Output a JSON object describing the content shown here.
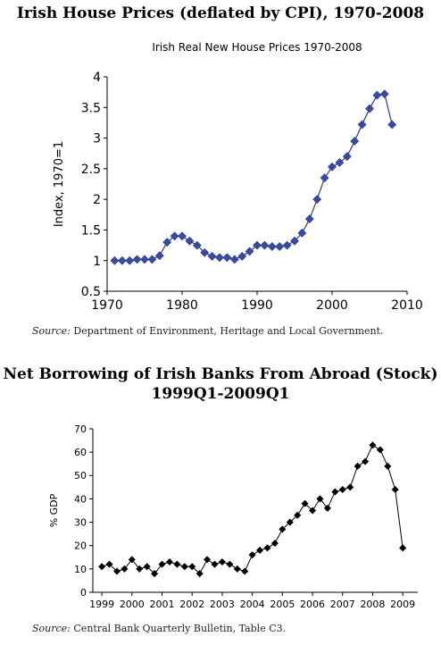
{
  "page": {
    "heading1": "Irish House Prices (deflated by CPI), 1970-2008",
    "source1_label": "Source:",
    "source1_text": " Department of Environment, Heritage and Local Government.",
    "heading2_line1": "Net Borrowing of Irish Banks From Abroad (Stock)",
    "heading2_line2": "1999Q1-2009Q1",
    "source2_label": "Source:",
    "source2_text": " Central Bank Quarterly Bulletin, Table C3."
  },
  "chart_data": [
    {
      "type": "line",
      "title": "Irish Real New House Prices 1970-2008",
      "xlabel": "",
      "ylabel": "Index, 1970=1",
      "xlim": [
        1970,
        2010
      ],
      "ylim": [
        0.5,
        4
      ],
      "xticks": [
        1970,
        1980,
        1990,
        2000,
        2010
      ],
      "yticks": [
        0.5,
        1,
        1.5,
        2,
        2.5,
        3,
        3.5,
        4
      ],
      "ytick_labels": [
        "0.5",
        "1",
        "1.5",
        "2",
        "2.5",
        "3",
        "3.5",
        "4"
      ],
      "grid": false,
      "marker": "diamond",
      "color": "#2e3a87",
      "marker_color": "#3b4a9e",
      "x": [
        1971,
        1972,
        1973,
        1974,
        1975,
        1976,
        1977,
        1978,
        1979,
        1980,
        1981,
        1982,
        1983,
        1984,
        1985,
        1986,
        1987,
        1988,
        1989,
        1990,
        1991,
        1992,
        1993,
        1994,
        1995,
        1996,
        1997,
        1998,
        1999,
        2000,
        2001,
        2002,
        2003,
        2004,
        2005,
        2006,
        2007,
        2008
      ],
      "y": [
        1.0,
        1.0,
        1.0,
        1.02,
        1.02,
        1.02,
        1.08,
        1.3,
        1.4,
        1.4,
        1.32,
        1.25,
        1.13,
        1.07,
        1.05,
        1.05,
        1.02,
        1.07,
        1.15,
        1.25,
        1.25,
        1.23,
        1.23,
        1.25,
        1.32,
        1.45,
        1.68,
        2.0,
        2.35,
        2.53,
        2.6,
        2.7,
        2.95,
        3.22,
        3.48,
        3.7,
        3.72,
        3.22
      ]
    },
    {
      "type": "line",
      "title": "",
      "xlabel": "",
      "ylabel": "% GDP",
      "xlim": [
        1998.7,
        2009.5
      ],
      "ylim": [
        0,
        70
      ],
      "xticks": [
        1999,
        2000,
        2001,
        2002,
        2003,
        2004,
        2005,
        2006,
        2007,
        2008,
        2009
      ],
      "yticks": [
        0,
        10,
        20,
        30,
        40,
        50,
        60,
        70
      ],
      "grid": false,
      "marker": "diamond",
      "color": "#000000",
      "marker_color": "#000000",
      "x": [
        1999,
        1999.25,
        1999.5,
        1999.75,
        2000,
        2000.25,
        2000.5,
        2000.75,
        2001,
        2001.25,
        2001.5,
        2001.75,
        2002,
        2002.25,
        2002.5,
        2002.75,
        2003,
        2003.25,
        2003.5,
        2003.75,
        2004,
        2004.25,
        2004.5,
        2004.75,
        2005,
        2005.25,
        2005.5,
        2005.75,
        2006,
        2006.25,
        2006.5,
        2006.75,
        2007,
        2007.25,
        2007.5,
        2007.75,
        2008,
        2008.25,
        2008.5,
        2008.75,
        2009
      ],
      "y": [
        11,
        12,
        9,
        10,
        14,
        10,
        11,
        8,
        12,
        13,
        12,
        11,
        11,
        8,
        14,
        12,
        13,
        12,
        10,
        9,
        16,
        18,
        19,
        21,
        27,
        30,
        33,
        38,
        35,
        40,
        36,
        43,
        44,
        45,
        54,
        56,
        63,
        61,
        54,
        44,
        19
      ]
    }
  ]
}
